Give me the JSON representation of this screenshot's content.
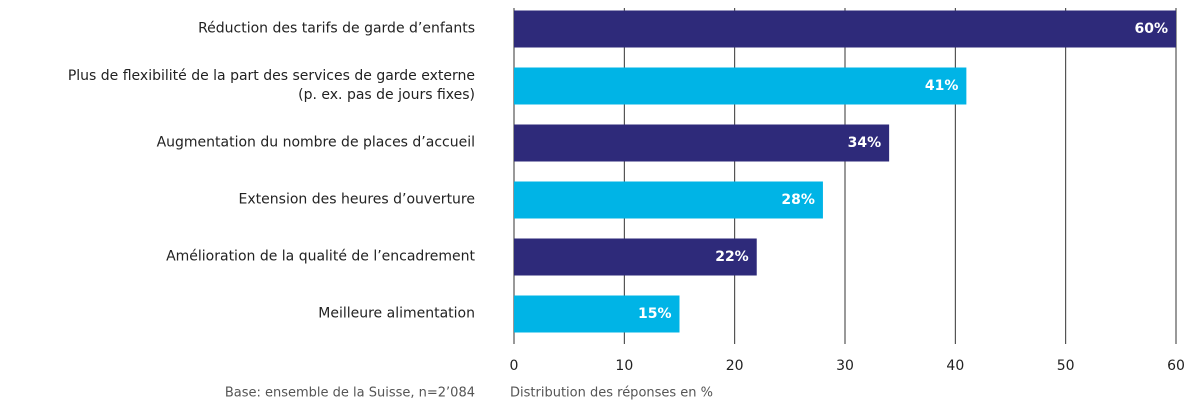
{
  "chart_data": {
    "type": "barh",
    "categories": [
      "Réduction des tarifs de garde d’enfants",
      "Plus de flexibilité de la part des services de garde externe\n(p. ex. pas de jours fixes)",
      "Augmentation du nombre de places d’accueil",
      "Extension des heures d’ouverture",
      "Amélioration de la qualité de l’encadrement",
      "Meilleure alimentation"
    ],
    "values": [
      60,
      41,
      34,
      28,
      22,
      15
    ],
    "value_labels": [
      "60%",
      "41%",
      "34%",
      "28%",
      "22%",
      "15%"
    ],
    "colors": [
      "#2e2a7a",
      "#00b4e6",
      "#2e2a7a",
      "#00b4e6",
      "#2e2a7a",
      "#00b4e6"
    ],
    "xlim": [
      0,
      60
    ],
    "xticks": [
      0,
      10,
      20,
      30,
      40,
      50,
      60
    ],
    "grid": true,
    "xlabel": "Distribution des réponses en %",
    "note": "Base: ensemble de la Suisse, n=2’084"
  }
}
